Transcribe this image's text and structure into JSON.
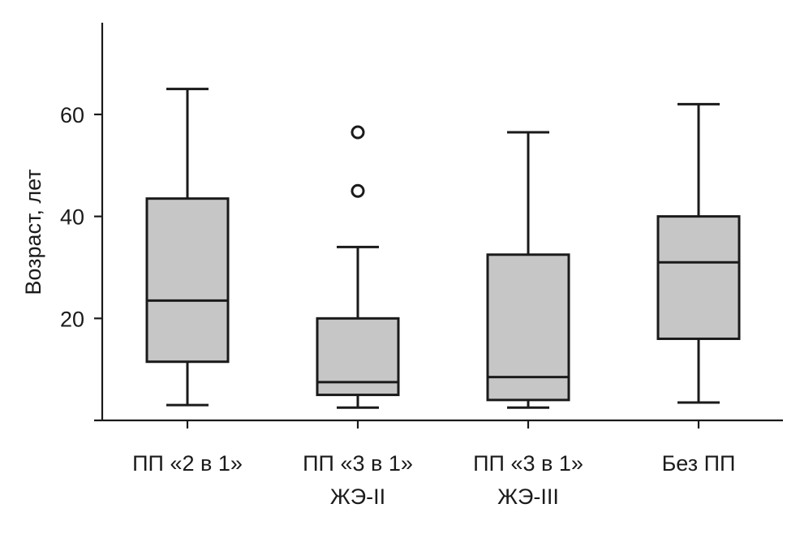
{
  "chart_data": {
    "type": "boxplot",
    "ylabel": "Возраст, лет",
    "xlabel": "",
    "ylim": [
      0,
      80
    ],
    "yticks": [
      20,
      40,
      60
    ],
    "grid": false,
    "box_fill": "#c6c6c6",
    "line_color": "#1a1a1a",
    "categories": [
      [
        "ПП «2 в 1»"
      ],
      [
        "ПП «3 в 1»",
        "ЖЭ-II"
      ],
      [
        "ПП «3 в 1»",
        "ЖЭ-III"
      ],
      [
        "Без ПП"
      ]
    ],
    "boxes": [
      {
        "whisker_low": 3,
        "q1": 11.5,
        "median": 23.5,
        "q3": 43.5,
        "whisker_high": 65,
        "outliers": []
      },
      {
        "whisker_low": 2.5,
        "q1": 5,
        "median": 7.5,
        "q3": 20,
        "whisker_high": 34,
        "outliers": [
          45,
          56.5
        ]
      },
      {
        "whisker_low": 2.5,
        "q1": 4,
        "median": 8.5,
        "q3": 32.5,
        "whisker_high": 56.5,
        "outliers": []
      },
      {
        "whisker_low": 3.5,
        "q1": 16,
        "median": 31,
        "q3": 40,
        "whisker_high": 62,
        "outliers": []
      }
    ]
  }
}
